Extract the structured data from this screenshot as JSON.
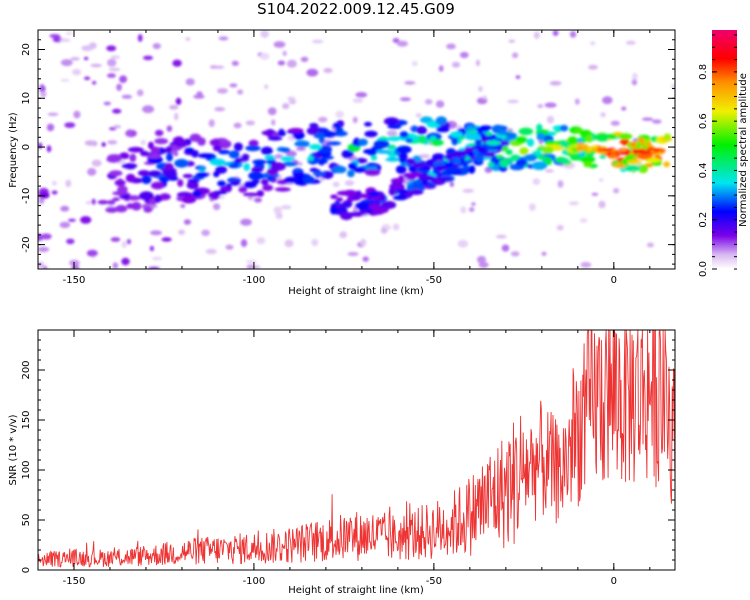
{
  "title": "S104.2022.009.12.45.G09",
  "chart_data": [
    {
      "type": "heatmap",
      "xlabel": "Height of straight line (km)",
      "ylabel": "Frequency (Hz)",
      "xlim": [
        -160,
        17
      ],
      "ylim": [
        -25,
        24
      ],
      "xticks": [
        -150,
        -100,
        -50,
        0
      ],
      "yticks": [
        -20,
        -10,
        0,
        10,
        20
      ],
      "colorbar": {
        "label": "Normalized spectral amplitude",
        "range": [
          0.0,
          0.97
        ],
        "ticks": [
          0.0,
          0.2,
          0.4,
          0.6,
          0.8
        ],
        "colors": [
          "#ffffff",
          "#d9b8f2",
          "#7a00e8",
          "#0000ff",
          "#00e6f0",
          "#00f000",
          "#f0f000",
          "#ff9000",
          "#ff0000",
          "#f0006e"
        ]
      },
      "ridge_main": {
        "x": [
          -140,
          -125,
          -110,
          -95,
          -80,
          -70,
          -60,
          -50,
          -40,
          -30,
          -20,
          -10,
          0,
          10,
          15
        ],
        "y": [
          -8,
          -5,
          -4,
          -3,
          -1,
          0,
          0,
          1,
          0,
          0,
          0,
          0,
          -1,
          -1,
          -1
        ],
        "amplitude": [
          0.2,
          0.3,
          0.35,
          0.35,
          0.4,
          0.45,
          0.4,
          0.5,
          0.55,
          0.6,
          0.6,
          0.7,
          0.95,
          0.9,
          0.8
        ]
      },
      "ridge_lower": {
        "x": [
          -78,
          -65,
          -58,
          -50,
          -42,
          -35,
          -30
        ],
        "y": [
          -12,
          -11,
          -8,
          -6,
          -3,
          0,
          3
        ],
        "amplitude": [
          0.25,
          0.3,
          0.35,
          0.4,
          0.4,
          0.4,
          0.35
        ]
      }
    },
    {
      "type": "line",
      "xlabel": "Height of straight line (km)",
      "ylabel": "SNR (10 * v/v)",
      "xlim": [
        -160,
        17
      ],
      "ylim": [
        0,
        240
      ],
      "xticks": [
        -150,
        -100,
        -50,
        0
      ],
      "yticks": [
        0,
        50,
        100,
        150,
        200
      ],
      "color": "#ee3333",
      "series": [
        {
          "x": [
            -160,
            -150,
            -140,
            -130,
            -120,
            -110,
            -100,
            -90,
            -80,
            -70,
            -60,
            -50,
            -45,
            -40,
            -35,
            -30,
            -25,
            -20,
            -15,
            -10,
            -5,
            0,
            5,
            10,
            14,
            17
          ],
          "y": [
            10,
            12,
            12,
            14,
            18,
            20,
            22,
            25,
            30,
            35,
            32,
            40,
            45,
            55,
            70,
            80,
            100,
            110,
            95,
            140,
            170,
            175,
            175,
            185,
            180,
            130
          ]
        }
      ]
    }
  ]
}
